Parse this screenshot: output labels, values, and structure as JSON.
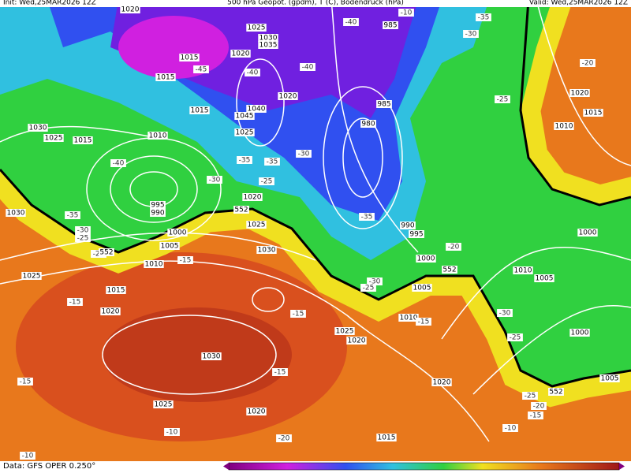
{
  "header": {
    "init": "Init: Wed,25MAR2026 12Z",
    "title": "500 hPa Geopot. (gpdm), T (C), Bodendruck (hPa)",
    "valid": "Valid: Wed,25MAR2026 12Z"
  },
  "footer": {
    "source": "Data: GFS OPER 0.250°"
  },
  "pressure_labels": [
    "1020",
    "1025",
    "1030",
    "1035",
    "1020",
    "1015",
    "1015",
    "1020",
    "1040",
    "1045",
    "1015",
    "1025",
    "1010",
    "1030",
    "1025",
    "1015",
    "985",
    "985",
    "980",
    "1020",
    "995",
    "990",
    "1025",
    "1000",
    "1005",
    "1010",
    "1030",
    "1025",
    "1015",
    "1020",
    "1030",
    "1025",
    "1020",
    "1015",
    "1020",
    "1025",
    "1020",
    "1010",
    "1005",
    "1000",
    "995",
    "990",
    "1020",
    "1015",
    "1010",
    "1000",
    "1010",
    "1005",
    "1000",
    "1005",
    "1030"
  ],
  "temperature_labels": [
    "-40",
    "-45",
    "-40",
    "-40",
    "-30",
    "-35",
    "-10",
    "-20",
    "-25",
    "-40",
    "-30",
    "-35",
    "-35",
    "-30",
    "-25",
    "-35",
    "-30",
    "-25",
    "-25",
    "-15",
    "-35",
    "-20",
    "-30",
    "-25",
    "-15",
    "-15",
    "-15",
    "-15",
    "-15",
    "-25",
    "-30",
    "-10",
    "-20",
    "-25",
    "-15",
    "-20",
    "-10",
    "-10"
  ],
  "height_labels": [
    "552",
    "552",
    "552",
    "552"
  ]
}
